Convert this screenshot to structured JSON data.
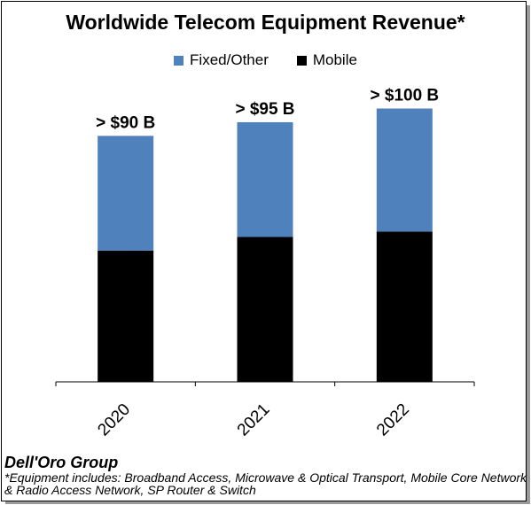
{
  "chart_data": {
    "type": "bar",
    "stacked": true,
    "title": "Worldwide Telecom Equipment Revenue*",
    "categories": [
      "2020",
      "2021",
      "2022"
    ],
    "series": [
      {
        "name": "Mobile",
        "values": [
          48,
          53,
          55
        ],
        "color": "#000000"
      },
      {
        "name": "Fixed/Other",
        "values": [
          42,
          42,
          45
        ],
        "color": "#4f81bd"
      }
    ],
    "totals_labels": [
      "> $90 B",
      "> $95 B",
      "> $100 B"
    ],
    "legend_order": [
      "Fixed/Other",
      "Mobile"
    ],
    "legend_placement": "top",
    "ylim": [
      0,
      106
    ],
    "grid": false,
    "xlabel": "",
    "ylabel": ""
  },
  "footer": {
    "brand": "Dell'Oro Group",
    "note": "*Equipment includes: Broadband Access, Microwave & Optical Transport, Mobile Core Network & Radio Access Network, SP Router & Switch"
  }
}
